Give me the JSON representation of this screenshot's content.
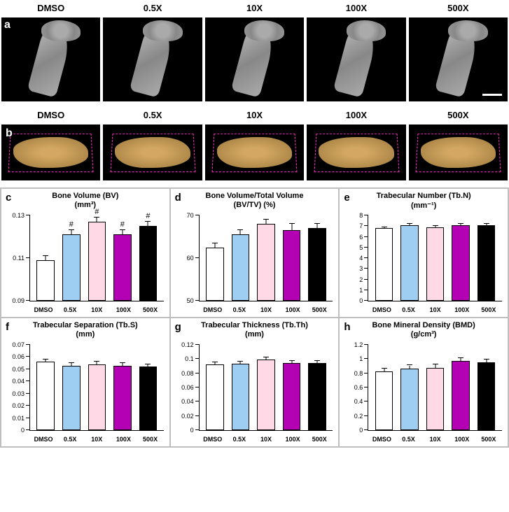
{
  "conditions": [
    "DMSO",
    "0.5X",
    "10X",
    "100X",
    "500X"
  ],
  "colors": {
    "DMSO": "#ffffff",
    "0.5X": "#9ecff2",
    "10X": "#ffd9e6",
    "100X": "#b300b3",
    "500X": "#000000"
  },
  "row_a": {
    "letter": "a",
    "scale_bar_on": "500X"
  },
  "row_b": {
    "letter": "b"
  },
  "charts": [
    {
      "letter": "c",
      "title": "Bone Volume (BV)",
      "unit": "(mm³)",
      "ymin": 0.09,
      "ymax": 0.13,
      "yticks": [
        0.09,
        0.11,
        0.13
      ],
      "values": [
        0.109,
        0.121,
        0.127,
        0.121,
        0.125
      ],
      "errors": [
        0.002,
        0.002,
        0.002,
        0.002,
        0.002
      ],
      "sig": [
        "",
        "#",
        "#",
        "#",
        "#"
      ]
    },
    {
      "letter": "d",
      "title": "Bone Volume/Total Volume",
      "unit": "(BV/TV) (%)",
      "ymin": 50,
      "ymax": 70,
      "yticks": [
        50,
        60,
        70
      ],
      "values": [
        62.5,
        65.5,
        68,
        66.5,
        67
      ],
      "errors": [
        1.0,
        1.0,
        1.0,
        1.5,
        1.0
      ],
      "sig": [
        "",
        "",
        "",
        "",
        ""
      ]
    },
    {
      "letter": "e",
      "title": "Trabecular Number (Tb.N)",
      "unit": "(mm⁻¹)",
      "ymin": 0,
      "ymax": 8,
      "yticks": [
        0,
        1,
        2,
        3,
        4,
        5,
        6,
        7,
        8
      ],
      "values": [
        6.8,
        7.1,
        6.9,
        7.1,
        7.1
      ],
      "errors": [
        0.1,
        0.1,
        0.1,
        0.1,
        0.1
      ],
      "sig": [
        "",
        "",
        "",
        "",
        ""
      ]
    },
    {
      "letter": "f",
      "title": "Trabecular Separation (Tb.S)",
      "unit": "(mm)",
      "ymin": 0,
      "ymax": 0.07,
      "yticks": [
        0,
        0.01,
        0.02,
        0.03,
        0.04,
        0.05,
        0.06,
        0.07
      ],
      "values": [
        0.056,
        0.053,
        0.054,
        0.053,
        0.052
      ],
      "errors": [
        0.002,
        0.002,
        0.002,
        0.002,
        0.002
      ],
      "sig": [
        "",
        "",
        "",
        "",
        ""
      ]
    },
    {
      "letter": "g",
      "title": "Trabecular Thickness (Tb.Th)",
      "unit": "(mm)",
      "ymin": 0,
      "ymax": 0.12,
      "yticks": [
        0,
        0.02,
        0.04,
        0.06,
        0.08,
        0.1,
        0.12
      ],
      "values": [
        0.092,
        0.093,
        0.099,
        0.094,
        0.094
      ],
      "errors": [
        0.003,
        0.003,
        0.003,
        0.003,
        0.003
      ],
      "sig": [
        "",
        "",
        "",
        "",
        ""
      ]
    },
    {
      "letter": "h",
      "title": "Bone Mineral Density (BMD)",
      "unit": "(g/cm³)",
      "ymin": 0,
      "ymax": 1.2,
      "yticks": [
        0,
        0.2,
        0.4,
        0.6,
        0.8,
        1.0,
        1.2
      ],
      "values": [
        0.83,
        0.87,
        0.88,
        0.97,
        0.95
      ],
      "errors": [
        0.04,
        0.04,
        0.04,
        0.04,
        0.04
      ],
      "sig": [
        "",
        "",
        "",
        "",
        ""
      ]
    }
  ]
}
